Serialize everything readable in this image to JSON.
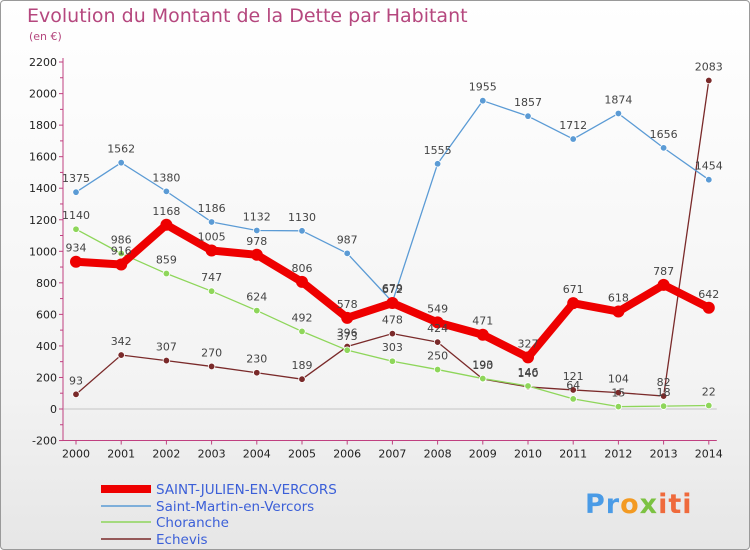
{
  "title": "Evolution du Montant de la Dette par Habitant",
  "subtitle": "(en €)",
  "logo": {
    "text": "Proxiti"
  },
  "chart_data": {
    "type": "line",
    "x": [
      2000,
      2001,
      2002,
      2003,
      2004,
      2005,
      2006,
      2007,
      2008,
      2009,
      2010,
      2011,
      2012,
      2013,
      2014
    ],
    "ylim": [
      -200,
      2200
    ],
    "yticks": [
      -200,
      0,
      200,
      400,
      600,
      800,
      1000,
      1200,
      1400,
      1600,
      1800,
      2000,
      2200
    ],
    "grid": false,
    "legend_position": "bottom-left",
    "series": [
      {
        "name": "SAINT-JULIEN-EN-VERCORS",
        "color": "#ee0000",
        "values": [
          934,
          916,
          1168,
          1005,
          978,
          806,
          578,
          672,
          549,
          471,
          327,
          671,
          618,
          787,
          642
        ]
      },
      {
        "name": "Saint-Martin-en-Vercors",
        "color": "#5b9bd5",
        "values": [
          1375,
          1562,
          1380,
          1186,
          1132,
          1130,
          987,
          679,
          1555,
          1955,
          1857,
          1712,
          1874,
          1656,
          1454
        ]
      },
      {
        "name": "Choranche",
        "color": "#8ed65a",
        "values": [
          1140,
          986,
          859,
          747,
          624,
          492,
          373,
          303,
          250,
          193,
          146,
          64,
          15,
          18,
          22
        ]
      },
      {
        "name": "Echevis",
        "color": "#7a2a2a",
        "values": [
          93,
          342,
          307,
          270,
          230,
          189,
          396,
          478,
          424,
          190,
          140,
          121,
          104,
          82,
          2083
        ]
      }
    ]
  }
}
